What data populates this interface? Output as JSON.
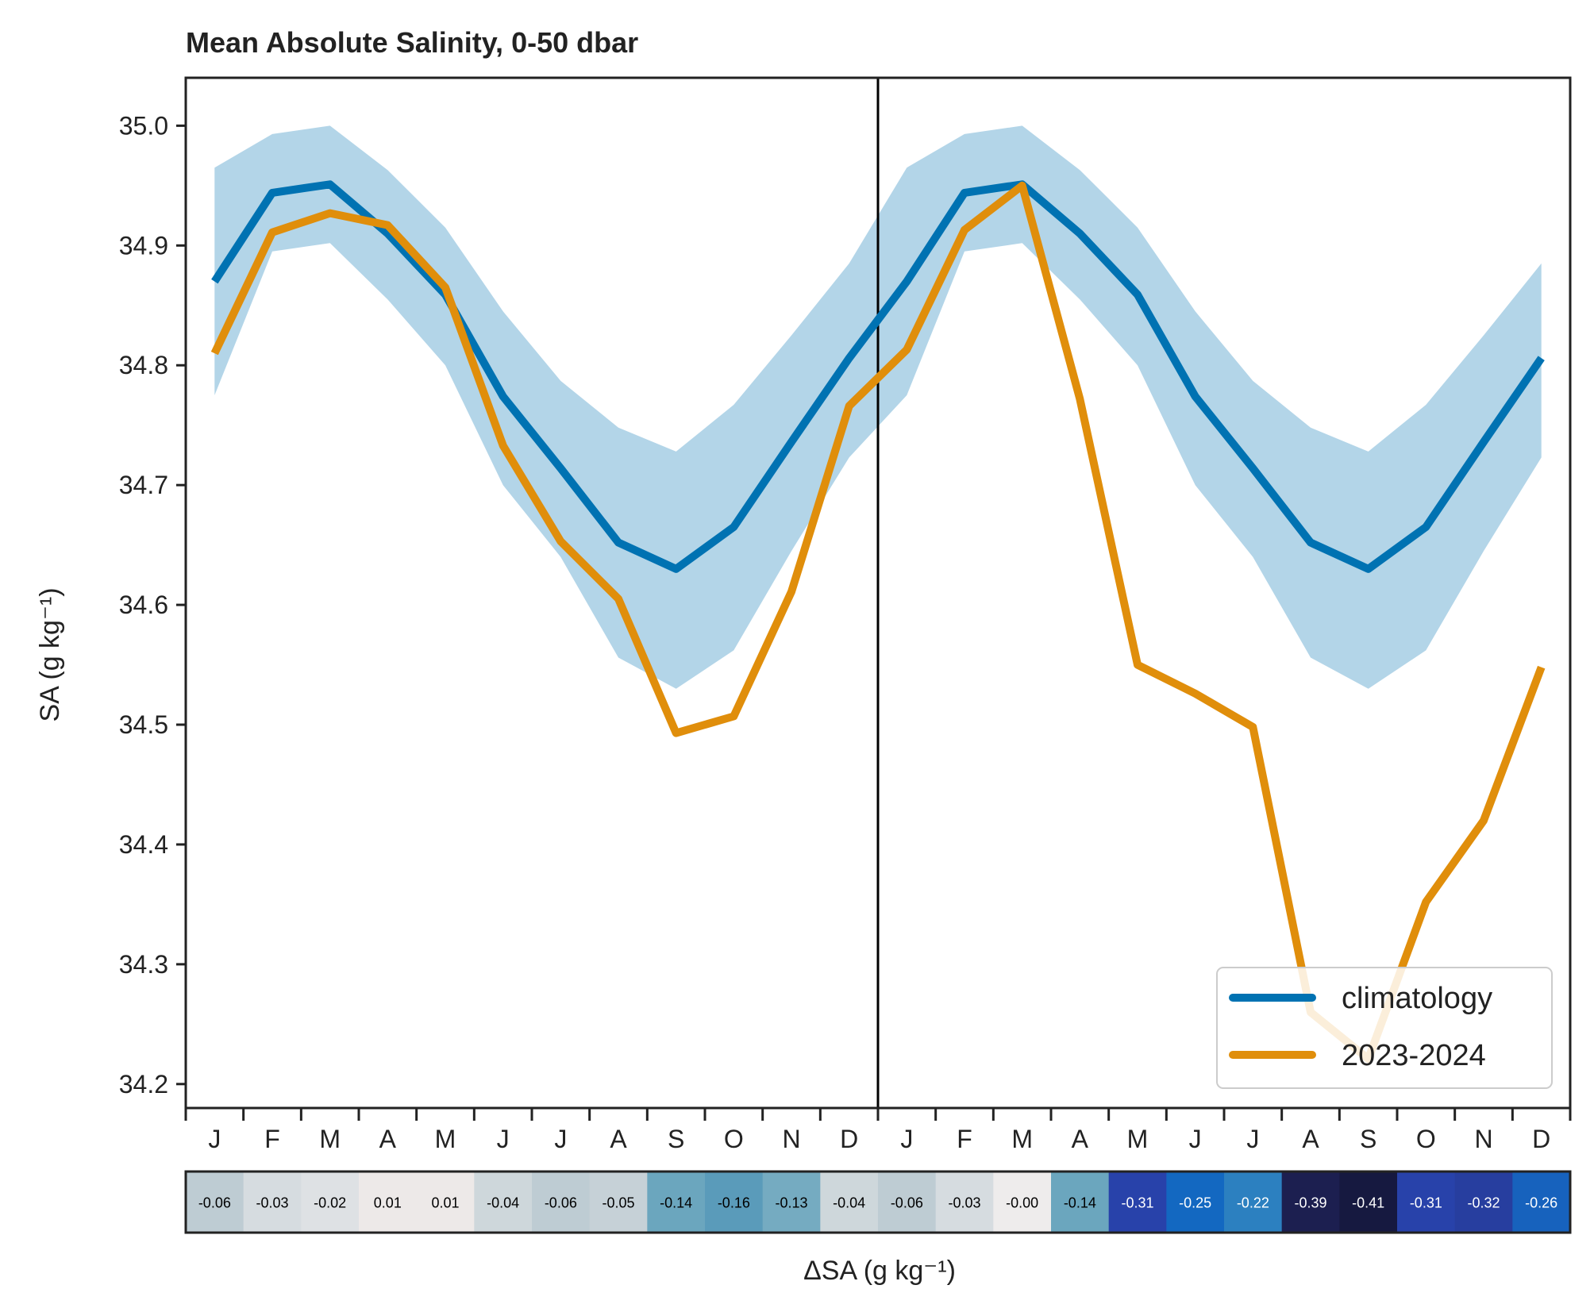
{
  "chart_data": {
    "type": "line",
    "title": "Mean Absolute Salinity, 0-50 dbar",
    "ylabel": "SA (g kg⁻¹)",
    "ylim": [
      34.18,
      35.04
    ],
    "yticks": [
      "34.2",
      "34.3",
      "34.4",
      "34.5",
      "34.6",
      "34.7",
      "34.8",
      "34.9",
      "35.0"
    ],
    "x_labels": [
      "J",
      "F",
      "M",
      "A",
      "M",
      "J",
      "J",
      "A",
      "S",
      "O",
      "N",
      "D",
      "J",
      "F",
      "M",
      "A",
      "M",
      "J",
      "J",
      "A",
      "S",
      "O",
      "N",
      "D"
    ],
    "grid": false,
    "legend_position": "lower-right",
    "band": {
      "upper": [
        34.965,
        34.993,
        35.0,
        34.963,
        34.915,
        34.845,
        34.787,
        34.748,
        34.728,
        34.767,
        34.825,
        34.885,
        34.965,
        34.993,
        35.0,
        34.963,
        34.915,
        34.845,
        34.787,
        34.748,
        34.728,
        34.767,
        34.825,
        34.885
      ],
      "lower": [
        34.775,
        34.895,
        34.902,
        34.855,
        34.8,
        34.7,
        34.64,
        34.556,
        34.53,
        34.562,
        34.645,
        34.723,
        34.775,
        34.895,
        34.902,
        34.855,
        34.8,
        34.7,
        34.64,
        34.556,
        34.53,
        34.562,
        34.645,
        34.723
      ]
    },
    "series": [
      {
        "name": "climatology",
        "color": "#0072b2",
        "values": [
          34.87,
          34.944,
          34.951,
          34.91,
          34.859,
          34.774,
          34.714,
          34.652,
          34.63,
          34.665,
          34.736,
          34.806,
          34.87,
          34.944,
          34.951,
          34.91,
          34.859,
          34.774,
          34.714,
          34.652,
          34.63,
          34.665,
          34.736,
          34.806
        ]
      },
      {
        "name": "2023-2024",
        "color": "#e08e0b",
        "values": [
          34.81,
          34.911,
          34.927,
          34.917,
          34.865,
          34.733,
          34.653,
          34.605,
          34.493,
          34.507,
          34.611,
          34.766,
          34.813,
          34.913,
          34.95,
          34.772,
          34.55,
          34.526,
          34.498,
          34.26,
          34.221,
          34.352,
          34.42,
          34.548
        ]
      }
    ],
    "delta": {
      "label": "ΔSA (g kg⁻¹)",
      "values": [
        -0.06,
        -0.03,
        -0.02,
        0.01,
        0.01,
        -0.04,
        -0.06,
        -0.05,
        -0.14,
        -0.16,
        -0.13,
        -0.04,
        -0.06,
        -0.03,
        -0.0,
        -0.14,
        -0.31,
        -0.25,
        -0.22,
        -0.39,
        -0.41,
        -0.31,
        -0.32,
        -0.26
      ],
      "labels": [
        "-0.06",
        "-0.03",
        "-0.02",
        "0.01",
        "0.01",
        "-0.04",
        "-0.06",
        "-0.05",
        "-0.14",
        "-0.16",
        "-0.13",
        "-0.04",
        "-0.06",
        "-0.03",
        "-0.00",
        "-0.14",
        "-0.31",
        "-0.25",
        "-0.22",
        "-0.39",
        "-0.41",
        "-0.31",
        "-0.32",
        "-0.26"
      ]
    },
    "colors": {
      "band": "#b3d5e8",
      "axes": "#222222",
      "divider": "#000000"
    }
  }
}
